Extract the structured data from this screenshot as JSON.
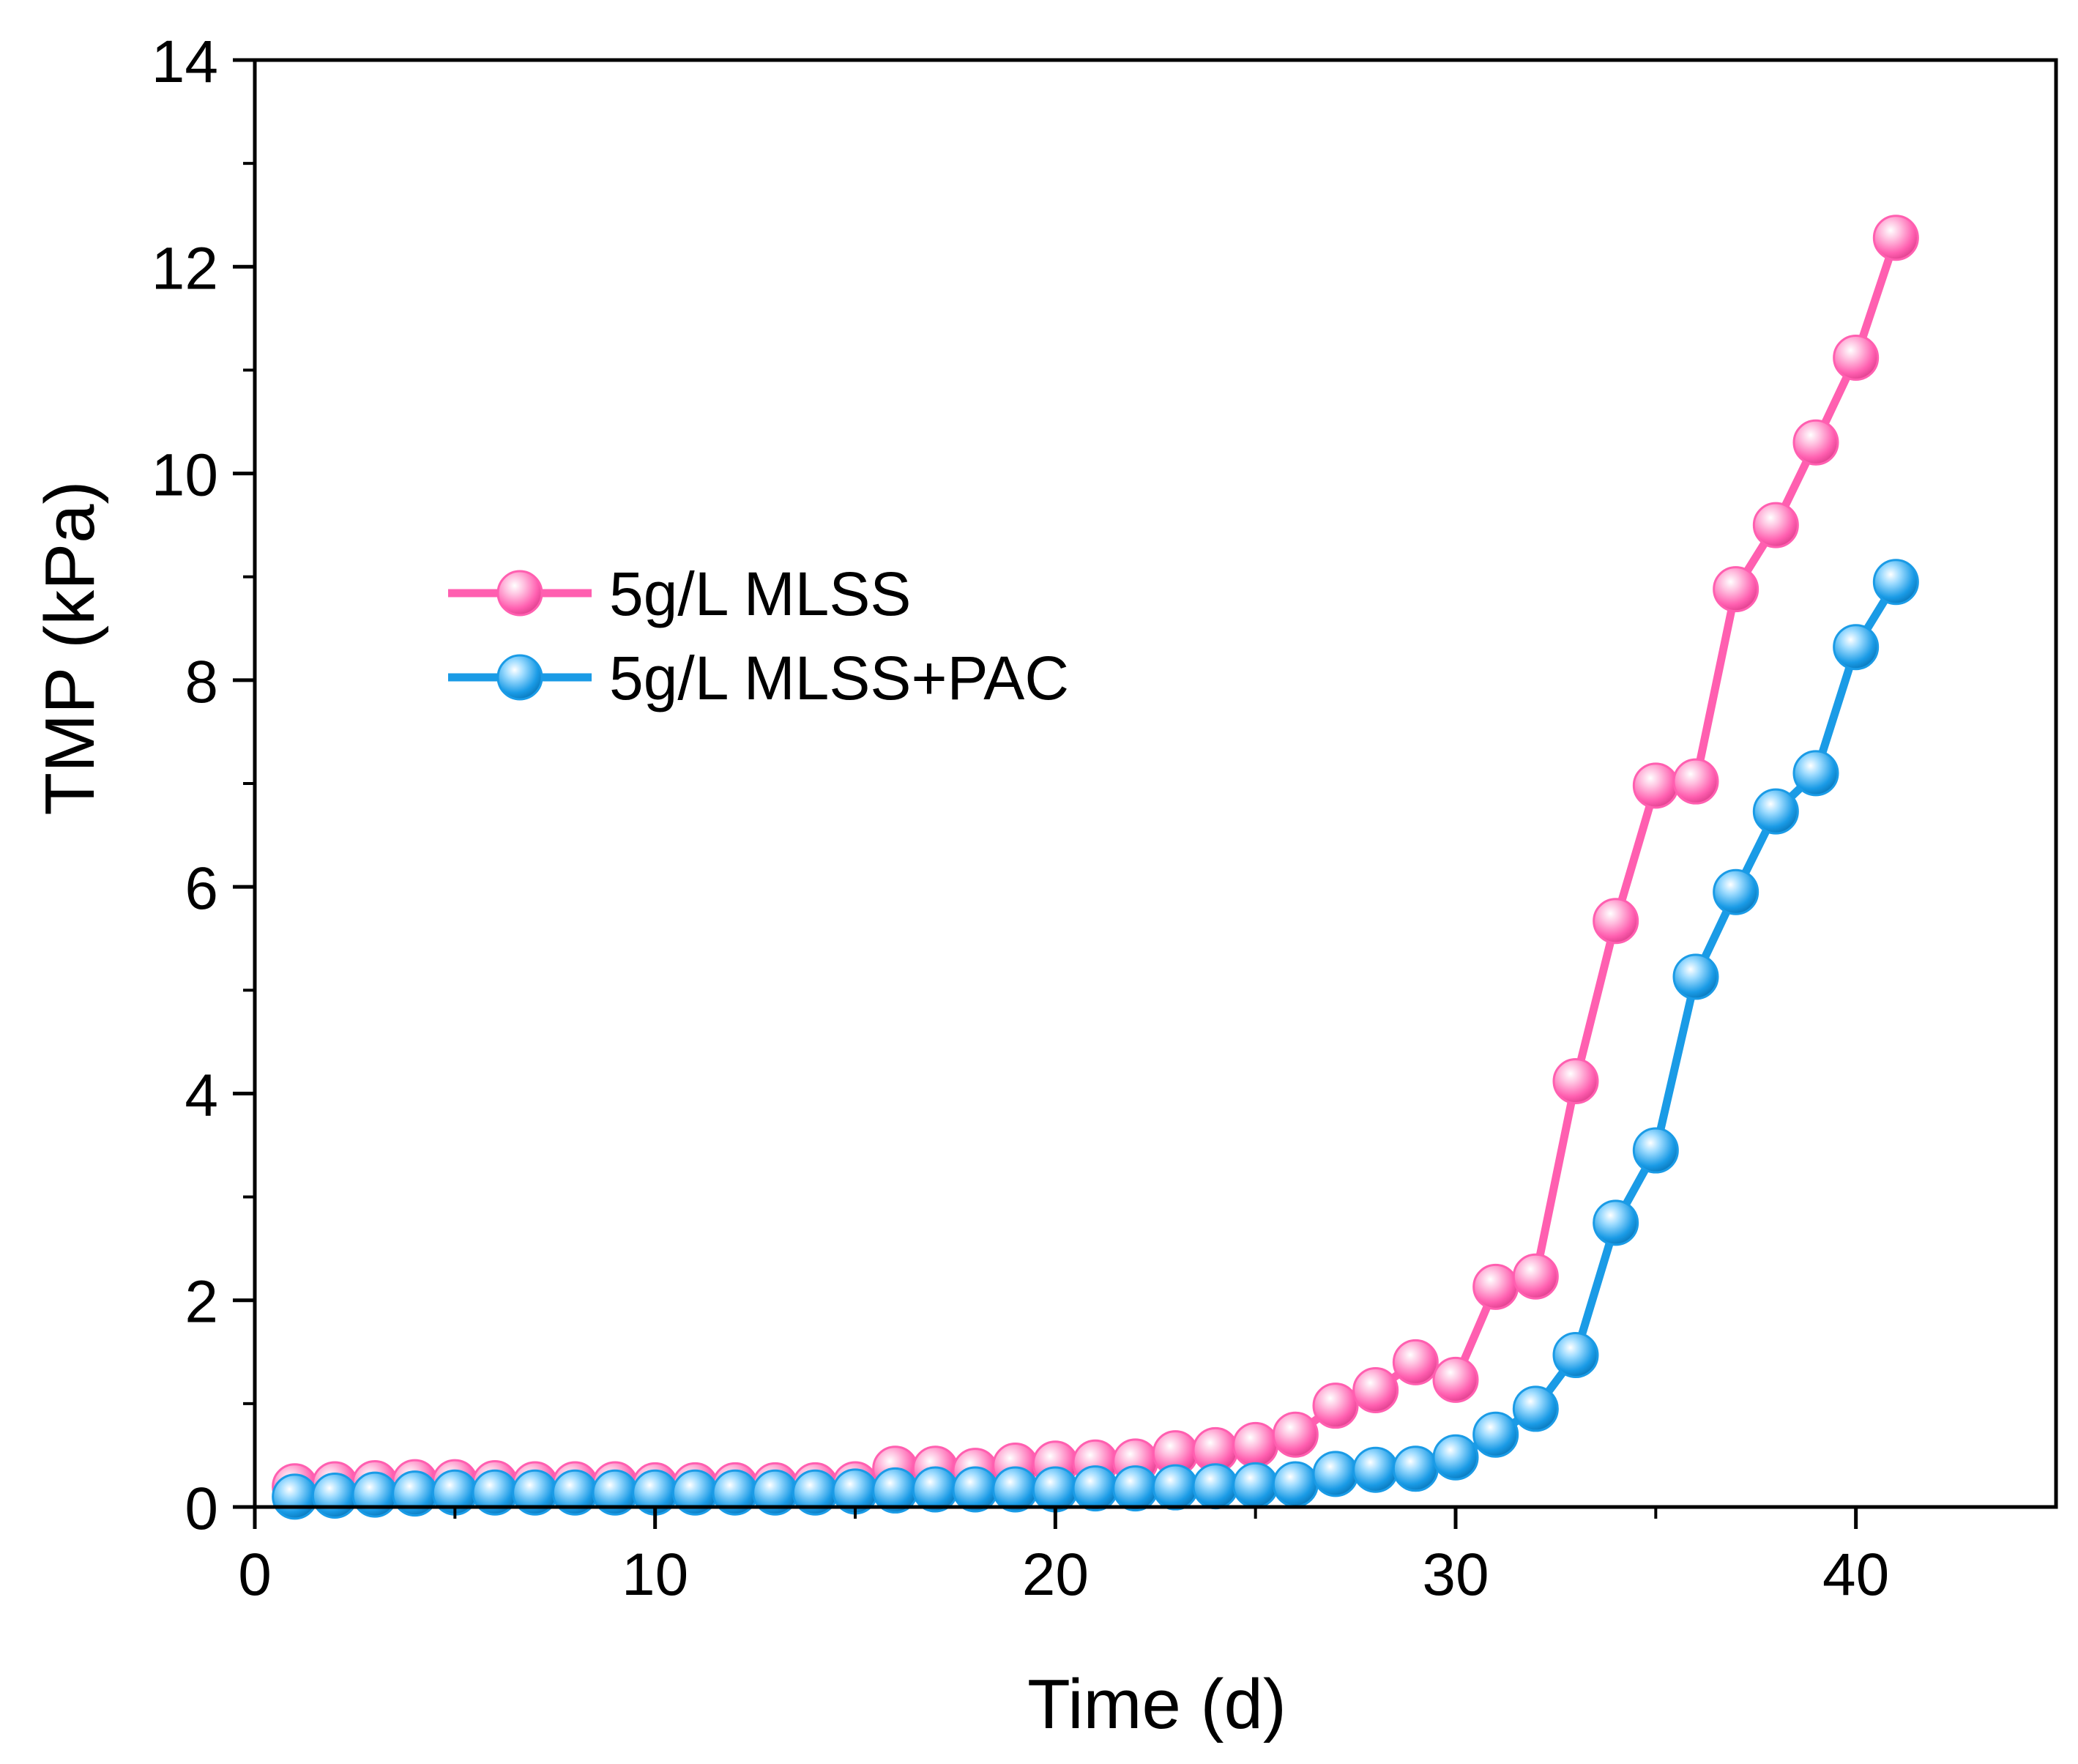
{
  "chart_data": {
    "type": "line",
    "title": "",
    "xlabel": "Time (d)",
    "ylabel": "TMP (kPa)",
    "xlim": [
      0,
      45
    ],
    "ylim": [
      0,
      14
    ],
    "xticks": [
      0,
      10,
      20,
      30,
      40
    ],
    "yticks": [
      0,
      2,
      4,
      6,
      8,
      10,
      12,
      14
    ],
    "grid": false,
    "legend_position": "upper-left",
    "series": [
      {
        "name": "5g/L MLSS",
        "color": "#ff5fb0",
        "x": [
          1,
          2,
          3,
          4,
          5,
          6,
          7,
          8,
          9,
          10,
          11,
          12,
          13,
          14,
          15,
          16,
          17,
          18,
          19,
          20,
          21,
          22,
          23,
          24,
          25,
          26,
          27,
          28,
          29,
          30,
          31,
          32,
          33,
          34,
          35,
          36,
          37,
          38,
          39,
          40,
          41
        ],
        "y": [
          0.2,
          0.22,
          0.23,
          0.24,
          0.24,
          0.23,
          0.22,
          0.22,
          0.22,
          0.21,
          0.21,
          0.21,
          0.21,
          0.21,
          0.22,
          0.37,
          0.37,
          0.35,
          0.4,
          0.42,
          0.43,
          0.44,
          0.52,
          0.55,
          0.6,
          0.7,
          0.98,
          1.13,
          1.4,
          1.23,
          2.13,
          2.23,
          4.12,
          5.67,
          6.98,
          7.02,
          8.88,
          9.5,
          10.3,
          11.12,
          12.28
        ]
      },
      {
        "name": "5g/L MLSS+PAC",
        "color": "#1a9be6",
        "x": [
          1,
          2,
          3,
          4,
          5,
          6,
          7,
          8,
          9,
          10,
          11,
          12,
          13,
          14,
          15,
          16,
          17,
          18,
          19,
          20,
          21,
          22,
          23,
          24,
          25,
          26,
          27,
          28,
          29,
          30,
          31,
          32,
          33,
          34,
          35,
          36,
          37,
          38,
          39,
          40,
          41
        ],
        "y": [
          0.1,
          0.11,
          0.12,
          0.13,
          0.14,
          0.14,
          0.14,
          0.14,
          0.14,
          0.14,
          0.14,
          0.14,
          0.14,
          0.14,
          0.15,
          0.16,
          0.17,
          0.17,
          0.17,
          0.17,
          0.18,
          0.18,
          0.19,
          0.2,
          0.21,
          0.22,
          0.32,
          0.36,
          0.37,
          0.48,
          0.7,
          0.95,
          1.47,
          2.75,
          3.45,
          5.13,
          5.95,
          6.73,
          7.1,
          8.32,
          8.95
        ]
      }
    ]
  }
}
